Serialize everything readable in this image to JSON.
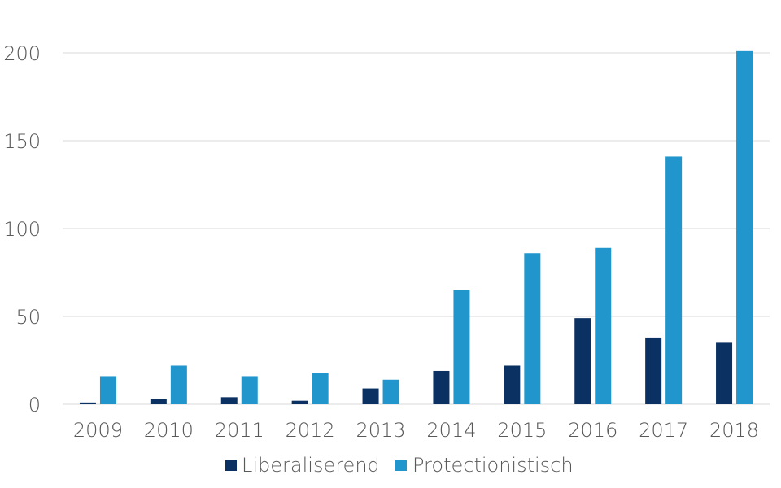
{
  "chart_data": {
    "type": "bar",
    "categories": [
      "2009",
      "2010",
      "2011",
      "2012",
      "2013",
      "2014",
      "2015",
      "2016",
      "2017",
      "2018"
    ],
    "series": [
      {
        "name": "Liberaliserend",
        "color": "#0a3161",
        "values": [
          1,
          3,
          4,
          2,
          9,
          19,
          22,
          49,
          38,
          35
        ]
      },
      {
        "name": "Protectionistisch",
        "color": "#2196cc",
        "values": [
          16,
          22,
          16,
          18,
          14,
          65,
          86,
          89,
          141,
          201
        ]
      }
    ],
    "yticks": [
      "0",
      "50",
      "100",
      "150",
      "200"
    ],
    "ylim": [
      0,
      200
    ],
    "grid": true,
    "legend_position": "bottom"
  }
}
